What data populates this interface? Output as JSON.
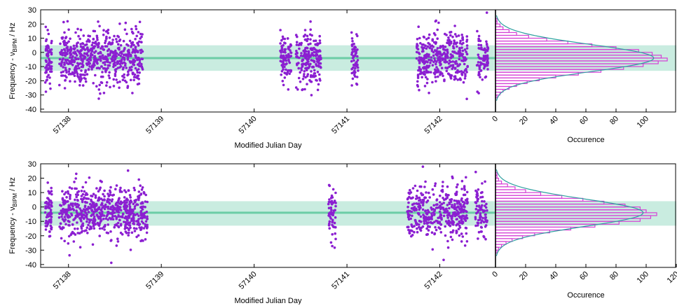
{
  "chart_data": [
    {
      "type": "scatter",
      "panel": "top",
      "xlabel": "Modified Julian Day",
      "ylabel": "Frequency - ν_BIPM / Hz",
      "ylabel_parts": {
        "lead": "Frequency - ν",
        "sub": "BIPM",
        "tail": " / Hz"
      },
      "xlim": [
        57137.7,
        57142.6
      ],
      "ylim": [
        -42,
        30
      ],
      "x_ticks": [
        "57138",
        "57139",
        "57140",
        "57141",
        "57142"
      ],
      "y_ticks": [
        "30",
        "20",
        "10",
        "0",
        "-10",
        "-20",
        "-30",
        "-40"
      ],
      "mean": -4,
      "band": [
        -13,
        5
      ],
      "clusters": [
        {
          "x": [
            57137.75,
            57137.82
          ],
          "count": 70
        },
        {
          "x": [
            57137.9,
            57138.8
          ],
          "count": 620
        },
        {
          "x": [
            57140.28,
            57140.4
          ],
          "count": 90
        },
        {
          "x": [
            57140.45,
            57140.72
          ],
          "count": 200
        },
        {
          "x": [
            57141.05,
            57141.12
          ],
          "count": 60
        },
        {
          "x": [
            57141.75,
            57142.3
          ],
          "count": 360
        },
        {
          "x": [
            57142.4,
            57142.52
          ],
          "count": 80
        }
      ],
      "histogram": {
        "xlabel": "Occurence",
        "xlim": [
          0,
          120
        ],
        "x_ticks": [
          "0",
          "20",
          "40",
          "60",
          "80",
          "100"
        ],
        "bins_center": [
          -31,
          -29,
          -27,
          -25,
          -23,
          -21,
          -19,
          -17,
          -15,
          -13,
          -11,
          -9,
          -7,
          -5,
          -3,
          -1,
          1,
          3,
          5,
          7,
          9,
          11,
          13,
          15,
          17,
          19,
          21,
          23
        ],
        "counts": [
          1,
          3,
          5,
          9,
          14,
          21,
          29,
          40,
          55,
          70,
          85,
          98,
          108,
          114,
          110,
          104,
          95,
          80,
          64,
          48,
          34,
          22,
          14,
          9,
          5,
          3,
          1,
          1
        ],
        "fit_peak": 105
      },
      "colors": {
        "points": "#8b1fd1",
        "band": "#c9ece0",
        "mean_line": "#6ccda6",
        "bars": "#d640d6",
        "fit": "#2f9fa0"
      }
    },
    {
      "type": "scatter",
      "panel": "bottom",
      "xlabel": "Modified Julian Day",
      "ylabel": "Frequency - ν_BIPM / Hz",
      "ylabel_parts": {
        "lead": "Frequency - ν",
        "sub": "BIPM",
        "tail": " / Hz"
      },
      "xlim": [
        57137.7,
        57142.6
      ],
      "ylim": [
        -42,
        30
      ],
      "x_ticks": [
        "57138",
        "57139",
        "57140",
        "57141",
        "57142"
      ],
      "y_ticks": [
        "30",
        "20",
        "10",
        "0",
        "-10",
        "-20",
        "-30",
        "-40"
      ],
      "mean": -4,
      "band": [
        -13,
        4
      ],
      "clusters": [
        {
          "x": [
            57137.75,
            57137.82
          ],
          "count": 70
        },
        {
          "x": [
            57137.9,
            57138.85
          ],
          "count": 650
        },
        {
          "x": [
            57140.8,
            57140.88
          ],
          "count": 60
        },
        {
          "x": [
            57141.65,
            57142.3
          ],
          "count": 420
        },
        {
          "x": [
            57142.38,
            57142.52
          ],
          "count": 80
        }
      ],
      "histogram": {
        "xlabel": "Occurence",
        "xlim": [
          0,
          120
        ],
        "x_ticks": [
          "0",
          "20",
          "40",
          "60",
          "80",
          "100",
          "120"
        ],
        "bins_center": [
          -31,
          -29,
          -27,
          -25,
          -23,
          -21,
          -19,
          -17,
          -15,
          -13,
          -11,
          -9,
          -7,
          -5,
          -3,
          -1,
          1,
          3,
          5,
          7,
          9,
          11,
          13,
          15,
          17,
          19,
          21,
          23
        ],
        "counts": [
          1,
          2,
          4,
          7,
          11,
          18,
          26,
          36,
          50,
          66,
          82,
          96,
          103,
          107,
          100,
          96,
          86,
          72,
          58,
          44,
          30,
          20,
          13,
          8,
          4,
          2,
          1,
          1
        ],
        "fit_peak": 98
      },
      "colors": {
        "points": "#8b1fd1",
        "band": "#c9ece0",
        "mean_line": "#6ccda6",
        "bars": "#d640d6",
        "fit": "#2f9fa0"
      }
    }
  ]
}
